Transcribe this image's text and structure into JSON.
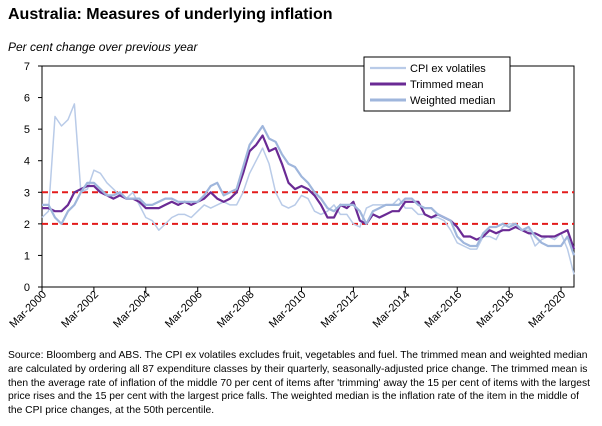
{
  "title": "Australia: Measures of underlying inflation",
  "subtitle": "Per cent change over previous year",
  "source": "Source: Bloomberg and ABS. The CPI ex volatiles excludes fruit, vegetables and fuel. The trimmed mean and weighted median are calculated by ordering all 87 expenditure classes by their quarterly, seasonally-adjusted price change. The trimmed mean is then the average rate of inflation of the middle 70 per cent of items after 'trimming' away the 15 per cent of items with the largest price rises and the 15 per cent with the largest price falls. The weighted median is the inflation rate of the item in the middle of the CPI price changes, at the 50th percentile.",
  "chart_data": {
    "type": "line",
    "title": "Australia: Measures of underlying inflation",
    "ylabel": "Per cent change over previous year",
    "ylim": [
      0,
      7
    ],
    "yticks": [
      0,
      1,
      2,
      3,
      4,
      5,
      6,
      7
    ],
    "xlim": [
      2000.0,
      2020.5
    ],
    "xticks": [
      {
        "value": 2000,
        "label": "Mar-2000"
      },
      {
        "value": 2002,
        "label": "Mar-2002"
      },
      {
        "value": 2004,
        "label": "Mar-2004"
      },
      {
        "value": 2006,
        "label": "Mar-2006"
      },
      {
        "value": 2008,
        "label": "Mar-2008"
      },
      {
        "value": 2010,
        "label": "Mar-2010"
      },
      {
        "value": 2012,
        "label": "Mar-2012"
      },
      {
        "value": 2014,
        "label": "Mar-2014"
      },
      {
        "value": 2016,
        "label": "Mar-2016"
      },
      {
        "value": 2018,
        "label": "Mar-2018"
      },
      {
        "value": 2020,
        "label": "Mar-2020"
      }
    ],
    "legend_position": "top-right",
    "reference_lines": [
      {
        "y": 3,
        "color": "#e31b1b",
        "style": "dashed"
      },
      {
        "y": 2,
        "color": "#e31b1b",
        "style": "dashed"
      }
    ],
    "series": [
      {
        "name": "CPI ex volatiles",
        "color": "#b9cbe8",
        "width": 1.5,
        "x": [
          2000.0,
          2000.25,
          2000.5,
          2000.75,
          2001.0,
          2001.25,
          2001.5,
          2001.75,
          2002.0,
          2002.25,
          2002.5,
          2002.75,
          2003.0,
          2003.25,
          2003.5,
          2003.75,
          2004.0,
          2004.25,
          2004.5,
          2004.75,
          2005.0,
          2005.25,
          2005.5,
          2005.75,
          2006.0,
          2006.25,
          2006.5,
          2006.75,
          2007.0,
          2007.25,
          2007.5,
          2007.75,
          2008.0,
          2008.25,
          2008.5,
          2008.75,
          2009.0,
          2009.25,
          2009.5,
          2009.75,
          2010.0,
          2010.25,
          2010.5,
          2010.75,
          2011.0,
          2011.25,
          2011.5,
          2011.75,
          2012.0,
          2012.25,
          2012.5,
          2012.75,
          2013.0,
          2013.25,
          2013.5,
          2013.75,
          2014.0,
          2014.25,
          2014.5,
          2014.75,
          2015.0,
          2015.25,
          2015.5,
          2015.75,
          2016.0,
          2016.25,
          2016.5,
          2016.75,
          2017.0,
          2017.25,
          2017.5,
          2017.75,
          2018.0,
          2018.25,
          2018.5,
          2018.75,
          2019.0,
          2019.25,
          2019.5,
          2019.75,
          2020.0,
          2020.25,
          2020.5
        ],
        "values": [
          2.2,
          2.4,
          5.4,
          5.1,
          5.3,
          5.8,
          3.0,
          3.1,
          3.7,
          3.6,
          3.3,
          3.1,
          2.9,
          2.8,
          3.0,
          2.6,
          2.2,
          2.1,
          1.8,
          2.0,
          2.2,
          2.3,
          2.3,
          2.2,
          2.4,
          2.6,
          2.5,
          2.6,
          2.7,
          2.6,
          2.6,
          3.0,
          3.6,
          4.0,
          4.4,
          3.9,
          3.0,
          2.6,
          2.5,
          2.6,
          2.9,
          2.8,
          2.4,
          2.3,
          2.4,
          2.6,
          2.3,
          2.3,
          2.0,
          1.9,
          2.5,
          2.6,
          2.6,
          2.6,
          2.6,
          2.8,
          2.5,
          2.5,
          2.3,
          2.3,
          2.2,
          2.2,
          2.1,
          1.8,
          1.4,
          1.3,
          1.2,
          1.2,
          1.6,
          1.6,
          1.5,
          1.9,
          2.0,
          2.0,
          1.8,
          1.8,
          1.3,
          1.5,
          1.6,
          1.5,
          1.7,
          1.2,
          0.4
        ]
      },
      {
        "name": "Trimmed mean",
        "color": "#6a2a94",
        "width": 2.2,
        "x": [
          2000.0,
          2000.25,
          2000.5,
          2000.75,
          2001.0,
          2001.25,
          2001.5,
          2001.75,
          2002.0,
          2002.25,
          2002.5,
          2002.75,
          2003.0,
          2003.25,
          2003.5,
          2003.75,
          2004.0,
          2004.25,
          2004.5,
          2004.75,
          2005.0,
          2005.25,
          2005.5,
          2005.75,
          2006.0,
          2006.25,
          2006.5,
          2006.75,
          2007.0,
          2007.25,
          2007.5,
          2007.75,
          2008.0,
          2008.25,
          2008.5,
          2008.75,
          2009.0,
          2009.25,
          2009.5,
          2009.75,
          2010.0,
          2010.25,
          2010.5,
          2010.75,
          2011.0,
          2011.25,
          2011.5,
          2011.75,
          2012.0,
          2012.25,
          2012.5,
          2012.75,
          2013.0,
          2013.25,
          2013.5,
          2013.75,
          2014.0,
          2014.25,
          2014.5,
          2014.75,
          2015.0,
          2015.25,
          2015.5,
          2015.75,
          2016.0,
          2016.25,
          2016.5,
          2016.75,
          2017.0,
          2017.25,
          2017.5,
          2017.75,
          2018.0,
          2018.25,
          2018.5,
          2018.75,
          2019.0,
          2019.25,
          2019.5,
          2019.75,
          2020.0,
          2020.25,
          2020.5
        ],
        "values": [
          2.5,
          2.5,
          2.4,
          2.4,
          2.6,
          3.0,
          3.1,
          3.2,
          3.2,
          3.0,
          2.9,
          2.8,
          2.9,
          2.8,
          2.8,
          2.7,
          2.5,
          2.5,
          2.5,
          2.6,
          2.7,
          2.6,
          2.7,
          2.6,
          2.7,
          2.8,
          3.0,
          2.8,
          2.7,
          2.8,
          3.0,
          3.6,
          4.3,
          4.5,
          4.8,
          4.3,
          4.4,
          3.9,
          3.3,
          3.1,
          3.2,
          3.1,
          2.9,
          2.6,
          2.2,
          2.2,
          2.6,
          2.5,
          2.7,
          2.1,
          2.0,
          2.3,
          2.2,
          2.3,
          2.4,
          2.4,
          2.7,
          2.7,
          2.7,
          2.3,
          2.2,
          2.3,
          2.2,
          2.1,
          1.9,
          1.6,
          1.6,
          1.5,
          1.6,
          1.8,
          1.7,
          1.8,
          1.8,
          1.9,
          1.8,
          1.7,
          1.7,
          1.6,
          1.6,
          1.6,
          1.7,
          1.8,
          1.2
        ]
      },
      {
        "name": "Weighted median",
        "color": "#9fb6dc",
        "width": 2.2,
        "x": [
          2000.0,
          2000.25,
          2000.5,
          2000.75,
          2001.0,
          2001.25,
          2001.5,
          2001.75,
          2002.0,
          2002.25,
          2002.5,
          2002.75,
          2003.0,
          2003.25,
          2003.5,
          2003.75,
          2004.0,
          2004.25,
          2004.5,
          2004.75,
          2005.0,
          2005.25,
          2005.5,
          2005.75,
          2006.0,
          2006.25,
          2006.5,
          2006.75,
          2007.0,
          2007.25,
          2007.5,
          2007.75,
          2008.0,
          2008.25,
          2008.5,
          2008.75,
          2009.0,
          2009.25,
          2009.5,
          2009.75,
          2010.0,
          2010.25,
          2010.5,
          2010.75,
          2011.0,
          2011.25,
          2011.5,
          2011.75,
          2012.0,
          2012.25,
          2012.5,
          2012.75,
          2013.0,
          2013.25,
          2013.5,
          2013.75,
          2014.0,
          2014.25,
          2014.5,
          2014.75,
          2015.0,
          2015.25,
          2015.5,
          2015.75,
          2016.0,
          2016.25,
          2016.5,
          2016.75,
          2017.0,
          2017.25,
          2017.5,
          2017.75,
          2018.0,
          2018.25,
          2018.5,
          2018.75,
          2019.0,
          2019.25,
          2019.5,
          2019.75,
          2020.0,
          2020.25,
          2020.5
        ],
        "values": [
          2.6,
          2.6,
          2.2,
          2.0,
          2.4,
          2.6,
          3.0,
          3.3,
          3.3,
          3.1,
          2.9,
          2.9,
          3.0,
          2.8,
          2.8,
          2.8,
          2.6,
          2.6,
          2.7,
          2.8,
          2.8,
          2.7,
          2.7,
          2.7,
          2.7,
          2.9,
          3.2,
          3.3,
          2.9,
          3.0,
          3.1,
          3.8,
          4.5,
          4.8,
          5.1,
          4.7,
          4.6,
          4.2,
          3.9,
          3.8,
          3.5,
          3.3,
          3.0,
          2.8,
          2.5,
          2.4,
          2.6,
          2.6,
          2.6,
          2.4,
          2.0,
          2.4,
          2.5,
          2.6,
          2.6,
          2.6,
          2.8,
          2.8,
          2.6,
          2.5,
          2.5,
          2.3,
          2.2,
          2.1,
          1.6,
          1.4,
          1.3,
          1.3,
          1.7,
          1.9,
          1.9,
          2.0,
          1.9,
          2.0,
          1.8,
          1.9,
          1.6,
          1.4,
          1.3,
          1.3,
          1.3,
          1.6,
          1.0
        ]
      }
    ]
  }
}
